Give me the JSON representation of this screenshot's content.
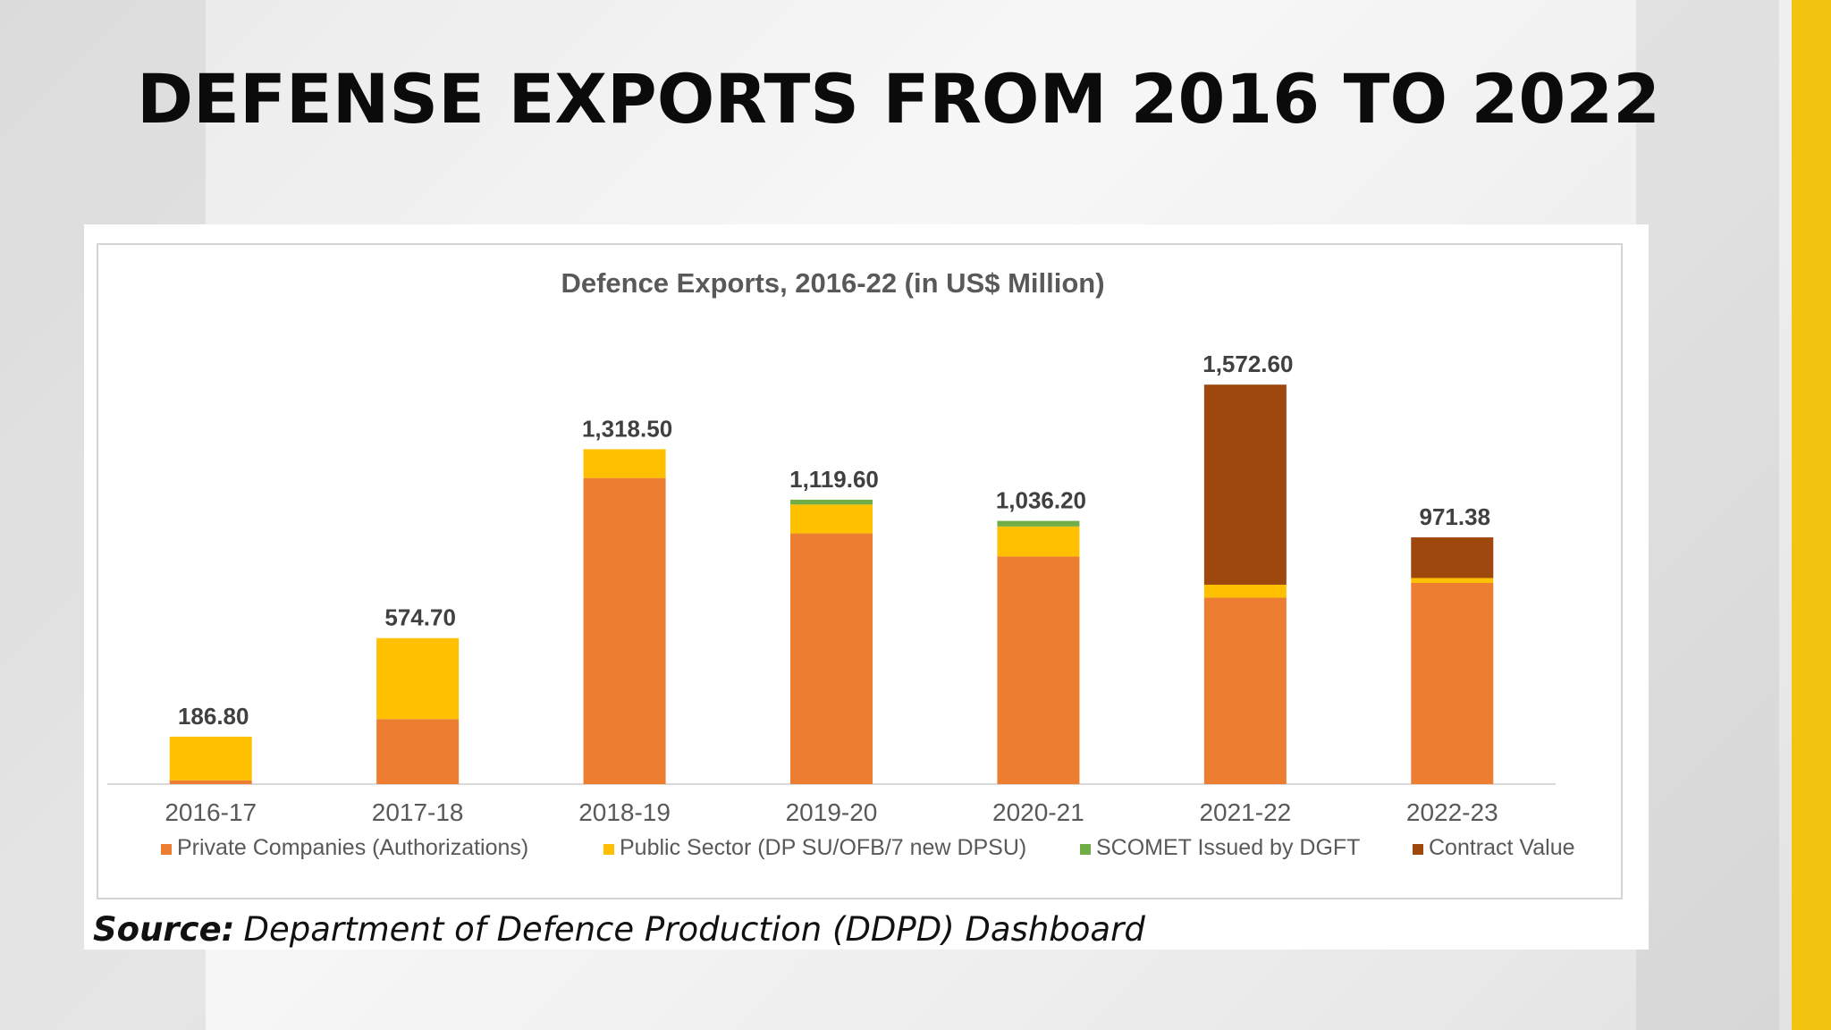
{
  "slide": {
    "title": "DEFENSE EXPORTS FROM 2016 TO 2022",
    "accent_color": "#f2c40f"
  },
  "source": {
    "label": "Source:",
    "text": "Department of Defence Production (DDPD) Dashboard"
  },
  "chart_data": {
    "type": "bar",
    "stacked": true,
    "title": "Defence Exports, 2016-22 (in US$ Million)",
    "categories": [
      "2016-17",
      "2017-18",
      "2018-19",
      "2019-20",
      "2020-21",
      "2021-22",
      "2022-23"
    ],
    "series": [
      {
        "name": "Private Companies (Authorizations)",
        "color": "#ed7d31",
        "values": [
          15,
          256,
          1205,
          987,
          896,
          734,
          792
        ]
      },
      {
        "name": "Public Sector (DP SU/OFB/7 new DPSU)",
        "color": "#ffc000",
        "values": [
          171.8,
          318.7,
          113.5,
          113.6,
          118.2,
          51,
          19.38
        ]
      },
      {
        "name": "SCOMET Issued by DGFT",
        "color": "#70ad47",
        "values": [
          0,
          0,
          0,
          19,
          22,
          0,
          0
        ]
      },
      {
        "name": "Contract Value",
        "color": "#9e480e",
        "values": [
          0,
          0,
          0,
          0,
          0,
          787.6,
          160
        ]
      }
    ],
    "totals": [
      "186.80",
      "574.70",
      "1,318.50",
      "1,119.60",
      "1,036.20",
      "1,572.60",
      "971.38"
    ],
    "ylim": [
      0,
      1700
    ],
    "grid": false,
    "legend_position": "bottom"
  }
}
